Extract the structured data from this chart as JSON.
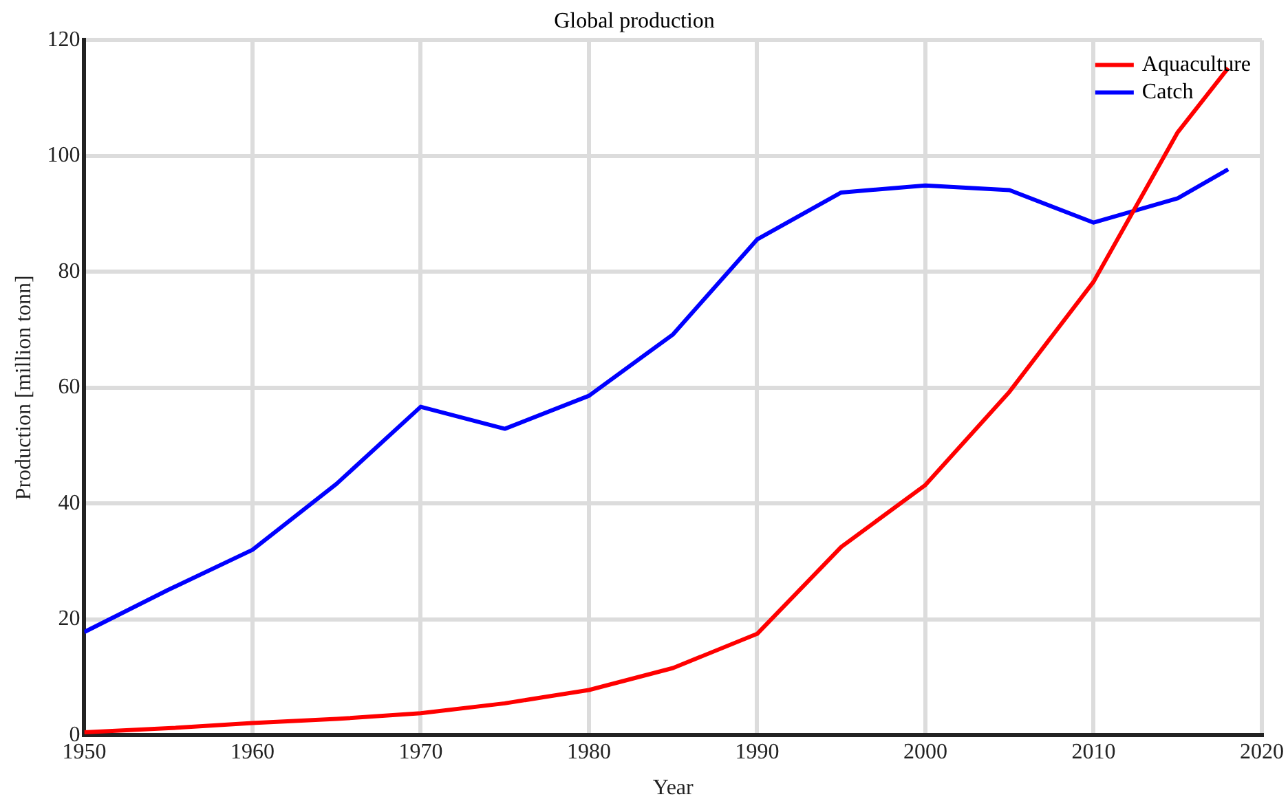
{
  "chart_data": {
    "type": "line",
    "title": "Global production",
    "xlabel": "Year",
    "ylabel": "Production [million tonn]",
    "x": [
      1950,
      1955,
      1960,
      1965,
      1970,
      1975,
      1980,
      1985,
      1990,
      1995,
      2000,
      2005,
      2010,
      2015,
      2018
    ],
    "series": [
      {
        "name": "Aquaculture",
        "color": "#ff0000",
        "values": [
          0.5,
          1.2,
          2.1,
          2.8,
          3.8,
          5.5,
          7.8,
          11.6,
          17.5,
          32.5,
          43.2,
          59.3,
          78.3,
          104.1,
          115.2
        ]
      },
      {
        "name": "Catch",
        "color": "#0000ff",
        "values": [
          17.8,
          25.1,
          32,
          43.4,
          56.7,
          52.9,
          58.6,
          69.2,
          85.6,
          93.7,
          94.9,
          94.1,
          88.5,
          92.7,
          97.7
        ]
      }
    ],
    "xlim": [
      1950,
      2020
    ],
    "xticks": [
      1950,
      1960,
      1970,
      1980,
      1990,
      2000,
      2010,
      2020
    ],
    "ylim": [
      0,
      120
    ],
    "yticks": [
      0,
      20,
      40,
      60,
      80,
      100,
      120
    ],
    "grid": true,
    "legend": "top right",
    "marker": "none",
    "line_style": "solid"
  }
}
